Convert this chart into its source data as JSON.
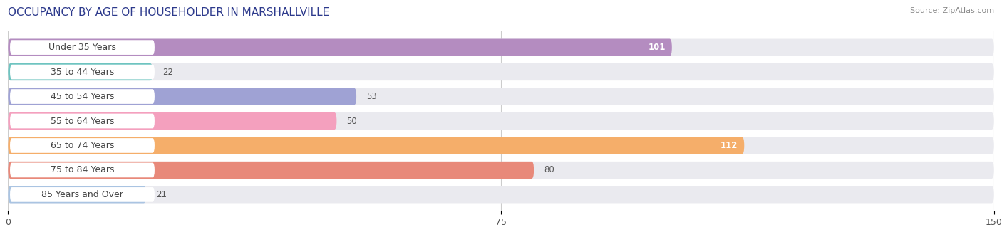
{
  "title": "OCCUPANCY BY AGE OF HOUSEHOLDER IN MARSHALLVILLE",
  "source": "Source: ZipAtlas.com",
  "categories": [
    "Under 35 Years",
    "35 to 44 Years",
    "45 to 54 Years",
    "55 to 64 Years",
    "65 to 74 Years",
    "75 to 84 Years",
    "85 Years and Over"
  ],
  "values": [
    101,
    22,
    53,
    50,
    112,
    80,
    21
  ],
  "colors": [
    "#b48cc0",
    "#6ec4c0",
    "#9fa2d4",
    "#f4a0be",
    "#f5ae6a",
    "#e8897a",
    "#aac4e2"
  ],
  "xlim": [
    0,
    150
  ],
  "xticks": [
    0,
    75,
    150
  ],
  "bar_height": 0.7,
  "background_color": "#ffffff",
  "bar_bg_color": "#eaeaef",
  "title_fontsize": 11,
  "label_fontsize": 9,
  "value_fontsize": 8.5,
  "source_fontsize": 8,
  "label_pill_color": "#ffffff",
  "label_text_color": "#444444",
  "grid_color": "#cccccc"
}
